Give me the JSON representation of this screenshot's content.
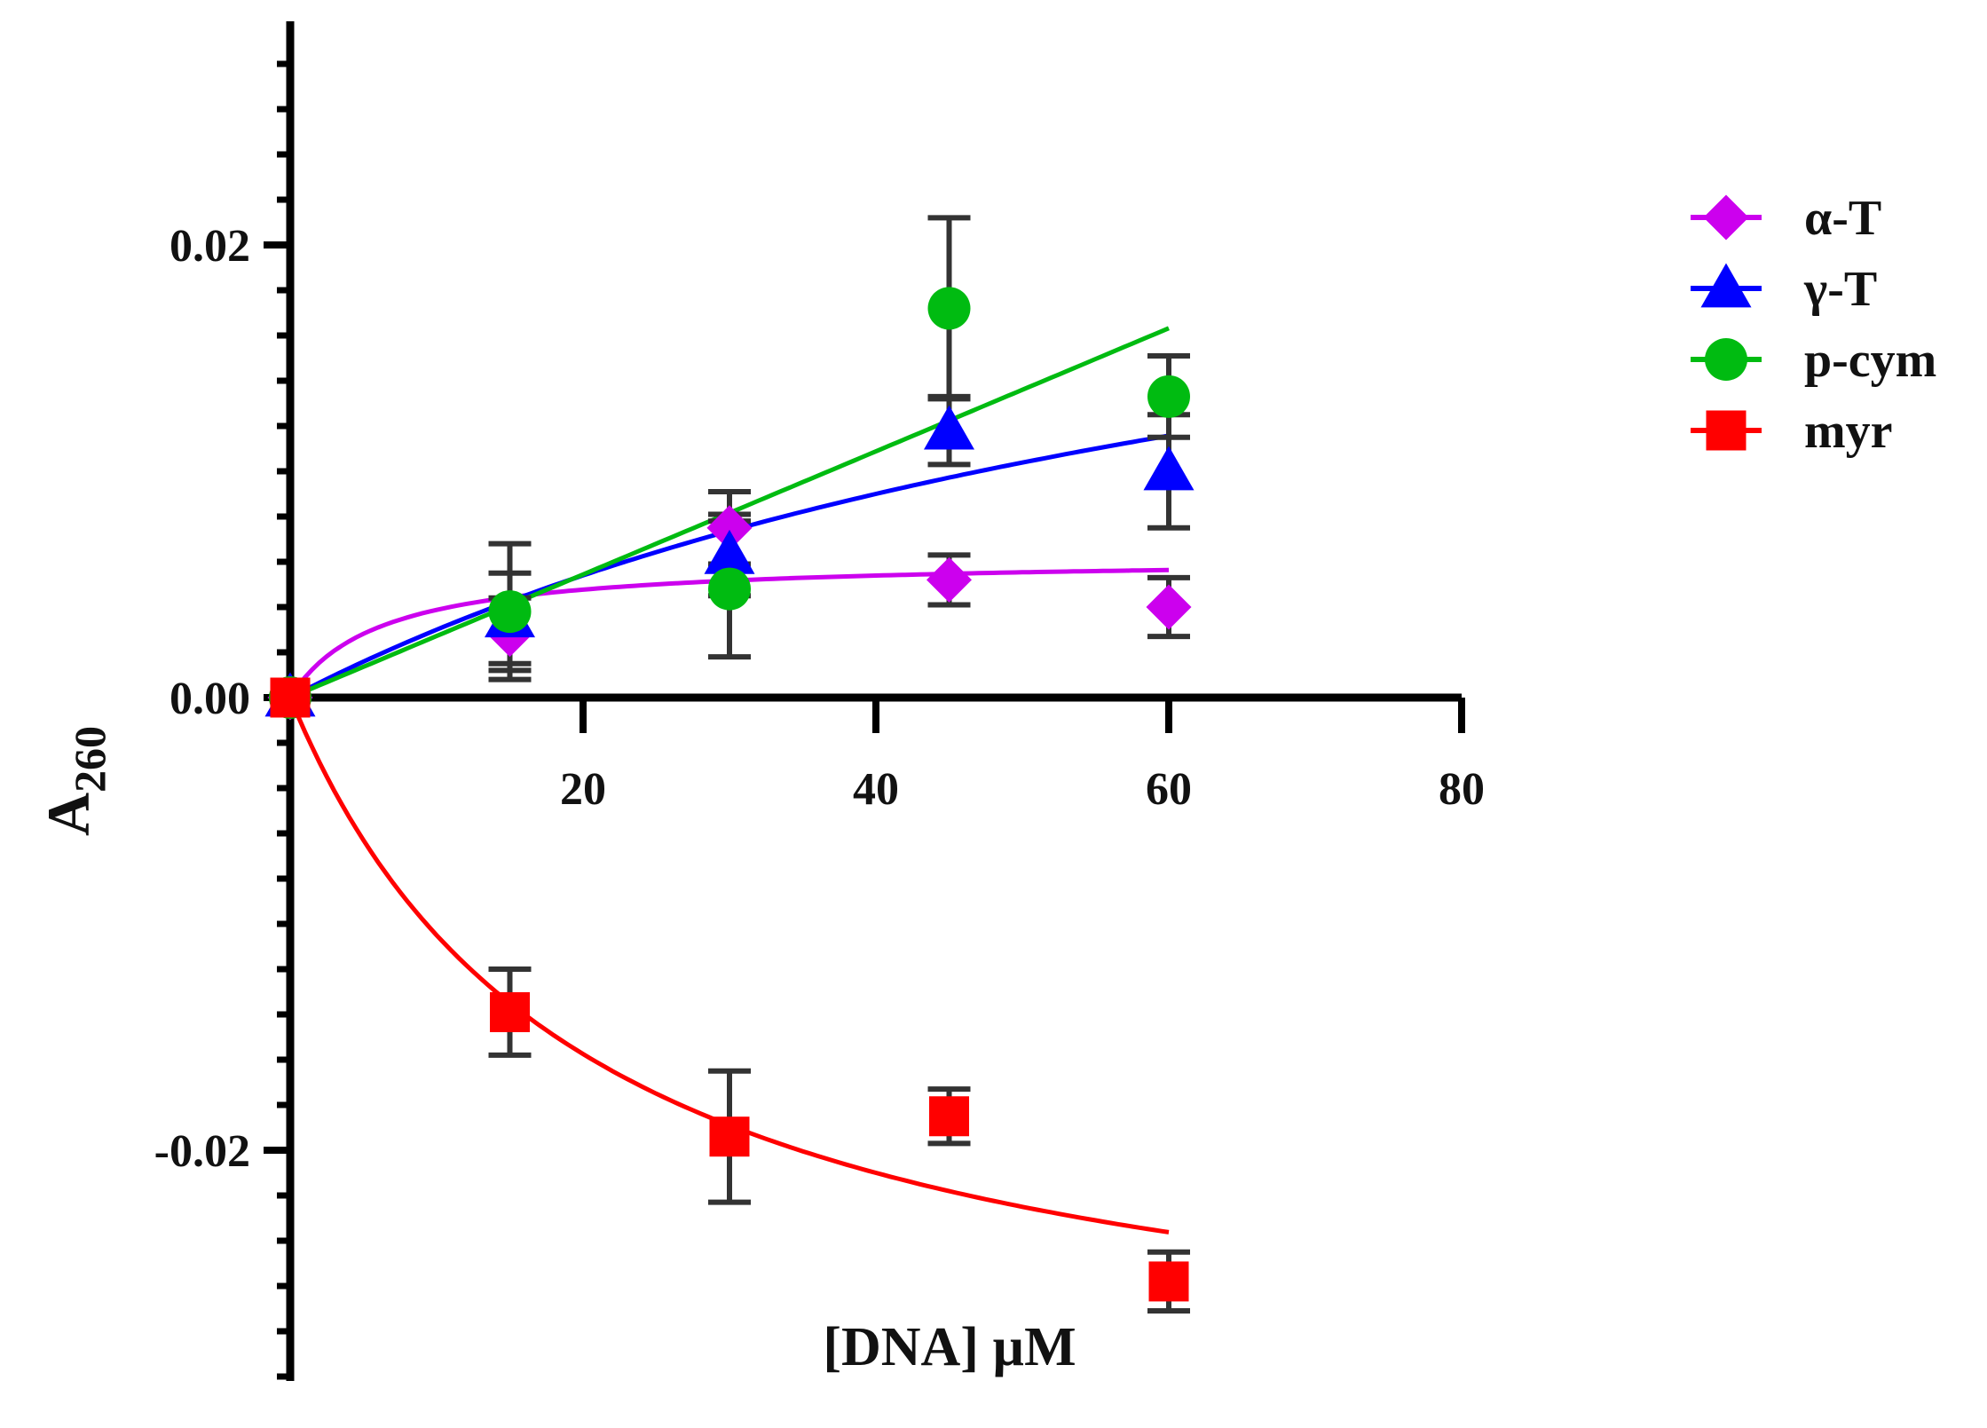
{
  "chart_data": {
    "type": "scatter",
    "title": "",
    "xlabel": "[DNA] µM",
    "ylabel": "A",
    "ylabel_subscript": "260",
    "xlim": [
      0,
      80
    ],
    "ylim": [
      -0.03,
      0.03
    ],
    "x_ticks": [
      20,
      40,
      60,
      80
    ],
    "x_tick_labels": [
      "20",
      "40",
      "60",
      "80"
    ],
    "y_ticks": [
      0.02,
      0.0,
      -0.02
    ],
    "y_tick_labels": [
      "0.02",
      "0.00",
      "-0.02"
    ],
    "y_minor_step": 0.002,
    "grid": false,
    "legend_position": "right",
    "series": [
      {
        "name": "α-T",
        "color": "#cc00ee",
        "marker": "diamond",
        "x": [
          0,
          15,
          30,
          45,
          60
        ],
        "y": [
          0.0,
          0.0028,
          0.0075,
          0.0052,
          0.004
        ],
        "err": [
          0.0,
          0.0016,
          0.0016,
          0.0011,
          0.0013
        ],
        "fit": "hyperbolic",
        "fit_params": {
          "ymax": 0.0062,
          "k": 6.0
        }
      },
      {
        "name": "γ-T",
        "color": "#0000ff",
        "marker": "triangle",
        "x": [
          0,
          15,
          30,
          45,
          60
        ],
        "y": [
          0.0,
          0.0035,
          0.0063,
          0.0118,
          0.01
        ],
        "err": [
          0.0,
          0.002,
          0.0018,
          0.0015,
          0.0025
        ],
        "fit": "hyperbolic",
        "fit_params": {
          "ymax": 0.027,
          "k": 80.0
        }
      },
      {
        "name": "p-cym",
        "color": "#00bb11",
        "marker": "circle",
        "x": [
          0,
          15,
          30,
          45,
          60
        ],
        "y": [
          0.0,
          0.0038,
          0.0048,
          0.0172,
          0.0133
        ],
        "err": [
          0.0,
          0.003,
          0.003,
          0.004,
          0.0018
        ],
        "fit": "linear",
        "fit_params": {
          "slope": 0.000272
        }
      },
      {
        "name": "myr",
        "color": "#ff0000",
        "marker": "square",
        "x": [
          0,
          15,
          30,
          45,
          60
        ],
        "y": [
          0.0,
          -0.0139,
          -0.0194,
          -0.0185,
          -0.0258
        ],
        "err": [
          0.0,
          0.0019,
          0.0029,
          0.0012,
          0.0013
        ],
        "fit": "hyperbolic",
        "fit_params": {
          "ymax": -0.0315,
          "k": 20.0
        }
      }
    ]
  }
}
